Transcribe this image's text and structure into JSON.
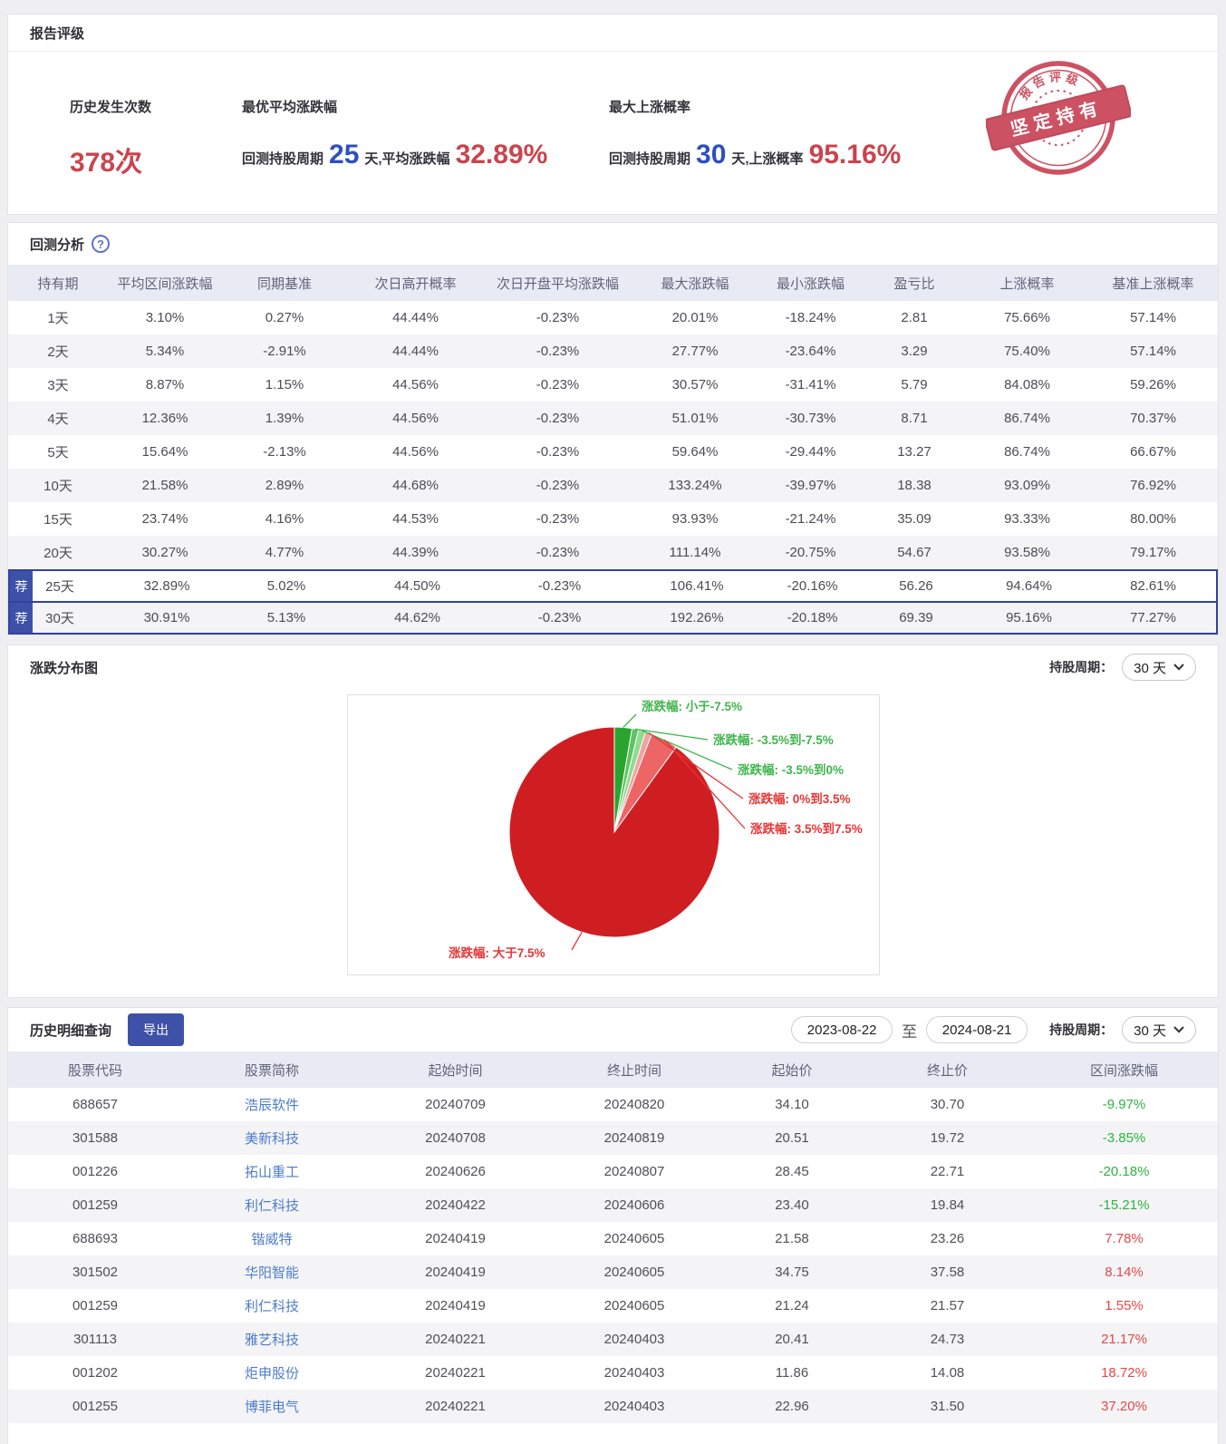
{
  "rating": {
    "title": "报告评级",
    "occurrence": {
      "label": "历史发生次数",
      "value": "378次"
    },
    "best_avg": {
      "label": "最优平均涨跌幅",
      "prefix": "回测持股周期",
      "days": "25",
      "infix": "天,平均涨跌幅",
      "value": "32.89%"
    },
    "max_prob": {
      "label": "最大上涨概率",
      "prefix": "回测持股周期",
      "days": "30",
      "infix": "天,上涨概率",
      "value": "95.16%"
    },
    "stamp": {
      "arc_text": "报告评级",
      "banner_text": "坚定持有",
      "color": "#c53b4e"
    }
  },
  "backtest": {
    "title": "回测分析",
    "help_icon": "?",
    "recommend_badge": "荐",
    "columns": [
      "持有期",
      "平均区间涨跌幅",
      "同期基准",
      "次日高开概率",
      "次日开盘平均涨跌幅",
      "最大涨跌幅",
      "最小涨跌幅",
      "盈亏比",
      "上涨概率",
      "基准上涨概率"
    ],
    "rows": [
      {
        "recommended": false,
        "cells": [
          "1天",
          "3.10%",
          "0.27%",
          "44.44%",
          "-0.23%",
          "20.01%",
          "-18.24%",
          "2.81",
          "75.66%",
          "57.14%"
        ]
      },
      {
        "recommended": false,
        "cells": [
          "2天",
          "5.34%",
          "-2.91%",
          "44.44%",
          "-0.23%",
          "27.77%",
          "-23.64%",
          "3.29",
          "75.40%",
          "57.14%"
        ]
      },
      {
        "recommended": false,
        "cells": [
          "3天",
          "8.87%",
          "1.15%",
          "44.56%",
          "-0.23%",
          "30.57%",
          "-31.41%",
          "5.79",
          "84.08%",
          "59.26%"
        ]
      },
      {
        "recommended": false,
        "cells": [
          "4天",
          "12.36%",
          "1.39%",
          "44.56%",
          "-0.23%",
          "51.01%",
          "-30.73%",
          "8.71",
          "86.74%",
          "70.37%"
        ]
      },
      {
        "recommended": false,
        "cells": [
          "5天",
          "15.64%",
          "-2.13%",
          "44.56%",
          "-0.23%",
          "59.64%",
          "-29.44%",
          "13.27",
          "86.74%",
          "66.67%"
        ]
      },
      {
        "recommended": false,
        "cells": [
          "10天",
          "21.58%",
          "2.89%",
          "44.68%",
          "-0.23%",
          "133.24%",
          "-39.97%",
          "18.38",
          "93.09%",
          "76.92%"
        ]
      },
      {
        "recommended": false,
        "cells": [
          "15天",
          "23.74%",
          "4.16%",
          "44.53%",
          "-0.23%",
          "93.93%",
          "-21.24%",
          "35.09",
          "93.33%",
          "80.00%"
        ]
      },
      {
        "recommended": false,
        "cells": [
          "20天",
          "30.27%",
          "4.77%",
          "44.39%",
          "-0.23%",
          "111.14%",
          "-20.75%",
          "54.67",
          "93.58%",
          "79.17%"
        ]
      },
      {
        "recommended": true,
        "cells": [
          "25天",
          "32.89%",
          "5.02%",
          "44.50%",
          "-0.23%",
          "106.41%",
          "-20.16%",
          "56.26",
          "94.64%",
          "82.61%"
        ]
      },
      {
        "recommended": true,
        "cells": [
          "30天",
          "30.91%",
          "5.13%",
          "44.62%",
          "-0.23%",
          "192.26%",
          "-20.18%",
          "69.39",
          "95.16%",
          "77.27%"
        ]
      }
    ]
  },
  "distribution": {
    "title": "涨跌分布图",
    "period_label": "持股周期：",
    "period_value": "30 天"
  },
  "chart_data": {
    "type": "pie",
    "title": "涨跌分布图",
    "legend_position": "callout-labels",
    "unit": "percent of backtest samples, 30天 holding period",
    "slices": [
      {
        "label": "涨跌幅: 小于-7.5%",
        "value": 2.7,
        "color": "#2aa42e",
        "label_color": "#3eb54b"
      },
      {
        "label": "涨跌幅: -3.5%到-7.5%",
        "value": 1.0,
        "color": "#5dc364",
        "label_color": "#3eb54b"
      },
      {
        "label": "涨跌幅: -3.5%到0%",
        "value": 1.1,
        "color": "#8fdc8f",
        "label_color": "#3eb54b"
      },
      {
        "label": "涨跌幅: 0%到3.5%",
        "value": 1.0,
        "color": "#f2a2a2",
        "label_color": "#e73535"
      },
      {
        "label": "涨跌幅: 3.5%到7.5%",
        "value": 4.2,
        "color": "#ee6565",
        "label_color": "#e73535"
      },
      {
        "label": "涨跌幅: 大于7.5%",
        "value": 90.0,
        "color": "#cf1e22",
        "label_color": "#e73535"
      }
    ]
  },
  "history": {
    "title": "历史明细查询",
    "export_label": "导出",
    "date_from": "2023-08-22",
    "range_separator": "至",
    "date_to": "2024-08-21",
    "period_label": "持股周期：",
    "period_value": "30 天",
    "columns": [
      "股票代码",
      "股票简称",
      "起始时间",
      "终止时间",
      "起始价",
      "终止价",
      "区间涨跌幅"
    ],
    "rows": [
      {
        "code": "688657",
        "name": "浩辰软件",
        "start": "20240709",
        "end": "20240820",
        "start_price": "34.10",
        "end_price": "30.70",
        "change": "-9.97%",
        "direction": "down"
      },
      {
        "code": "301588",
        "name": "美新科技",
        "start": "20240708",
        "end": "20240819",
        "start_price": "20.51",
        "end_price": "19.72",
        "change": "-3.85%",
        "direction": "down"
      },
      {
        "code": "001226",
        "name": "拓山重工",
        "start": "20240626",
        "end": "20240807",
        "start_price": "28.45",
        "end_price": "22.71",
        "change": "-20.18%",
        "direction": "down"
      },
      {
        "code": "001259",
        "name": "利仁科技",
        "start": "20240422",
        "end": "20240606",
        "start_price": "23.40",
        "end_price": "19.84",
        "change": "-15.21%",
        "direction": "down"
      },
      {
        "code": "688693",
        "name": "锴威特",
        "start": "20240419",
        "end": "20240605",
        "start_price": "21.58",
        "end_price": "23.26",
        "change": "7.78%",
        "direction": "up"
      },
      {
        "code": "301502",
        "name": "华阳智能",
        "start": "20240419",
        "end": "20240605",
        "start_price": "34.75",
        "end_price": "37.58",
        "change": "8.14%",
        "direction": "up"
      },
      {
        "code": "001259",
        "name": "利仁科技",
        "start": "20240419",
        "end": "20240605",
        "start_price": "21.24",
        "end_price": "21.57",
        "change": "1.55%",
        "direction": "up"
      },
      {
        "code": "301113",
        "name": "雅艺科技",
        "start": "20240221",
        "end": "20240403",
        "start_price": "20.41",
        "end_price": "24.73",
        "change": "21.17%",
        "direction": "up"
      },
      {
        "code": "001202",
        "name": "炬申股份",
        "start": "20240221",
        "end": "20240403",
        "start_price": "11.86",
        "end_price": "14.08",
        "change": "18.72%",
        "direction": "up"
      },
      {
        "code": "001255",
        "name": "博菲电气",
        "start": "20240221",
        "end": "20240403",
        "start_price": "22.96",
        "end_price": "31.50",
        "change": "37.20%",
        "direction": "up"
      }
    ]
  }
}
